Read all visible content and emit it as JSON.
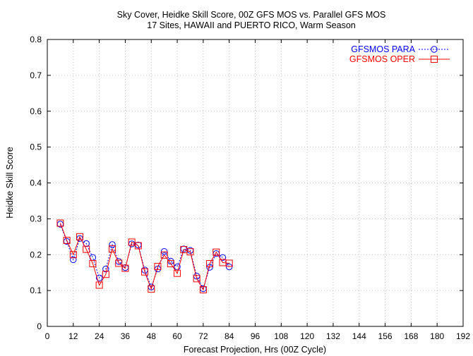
{
  "chart_data": {
    "type": "line",
    "title": "Sky Cover, Heidke Skill Score, 00Z GFS MOS vs. Parallel GFS MOS",
    "subtitle": "17 Sites, HAWAII and PUERTO RICO, Warm Season",
    "xlabel": "Forecast Projection, Hrs (00Z Cycle)",
    "ylabel": "Heidke Skill Score",
    "xlim": [
      0,
      192
    ],
    "ylim": [
      0,
      0.8
    ],
    "xticks": [
      "0",
      "12",
      "24",
      "36",
      "48",
      "60",
      "72",
      "84",
      "96",
      "108",
      "120",
      "132",
      "144",
      "156",
      "168",
      "180",
      "192"
    ],
    "yticks": [
      "0",
      "0.1",
      "0.2",
      "0.3",
      "0.4",
      "0.5",
      "0.6",
      "0.7",
      "0.8"
    ],
    "grid": true,
    "legend_position": "top-right",
    "x": [
      6,
      9,
      12,
      15,
      18,
      21,
      24,
      27,
      30,
      33,
      36,
      39,
      42,
      45,
      48,
      51,
      54,
      57,
      60,
      63,
      66,
      69,
      72,
      75,
      78,
      81,
      84
    ],
    "series": [
      {
        "name": "GFSMOS PARA",
        "color": "#0000ff",
        "marker": "circle",
        "line": "dotted",
        "values": [
          0.285,
          0.237,
          0.186,
          0.245,
          0.231,
          0.192,
          0.135,
          0.16,
          0.228,
          0.181,
          0.164,
          0.23,
          0.227,
          0.157,
          0.11,
          0.16,
          0.209,
          0.182,
          0.166,
          0.216,
          0.212,
          0.14,
          0.105,
          0.165,
          0.203,
          0.192,
          0.166
        ]
      },
      {
        "name": "GFSMOS OPER",
        "color": "#ff0000",
        "marker": "square",
        "line": "solid",
        "values": [
          0.288,
          0.24,
          0.2,
          0.25,
          0.215,
          0.175,
          0.115,
          0.145,
          0.216,
          0.176,
          0.162,
          0.235,
          0.225,
          0.152,
          0.104,
          0.167,
          0.199,
          0.175,
          0.148,
          0.214,
          0.208,
          0.133,
          0.102,
          0.175,
          0.207,
          0.178,
          0.176
        ]
      }
    ]
  }
}
